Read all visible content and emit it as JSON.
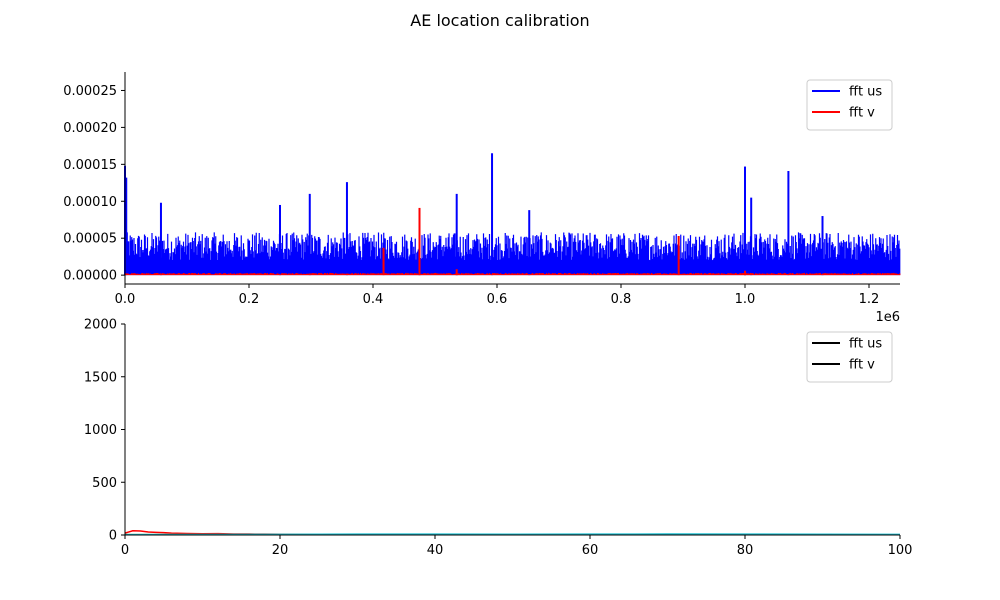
{
  "figure": {
    "title": "AE location calibration"
  },
  "chart_data": [
    {
      "type": "line",
      "title": "",
      "xlabel": "",
      "ylabel": "",
      "xlim": [
        0,
        1250000
      ],
      "ylim": [
        -1.2e-05,
        0.000275
      ],
      "x_offset_label": "1e6",
      "x_ticks": [
        0,
        200000,
        400000,
        600000,
        800000,
        1000000,
        1200000
      ],
      "x_tick_labels": [
        "0.0",
        "0.2",
        "0.4",
        "0.6",
        "0.8",
        "1.0",
        "1.2"
      ],
      "y_ticks": [
        0,
        5e-05,
        0.0001,
        0.00015,
        0.0002,
        0.00025
      ],
      "y_tick_labels": [
        "0.00000",
        "0.00005",
        "0.00010",
        "0.00015",
        "0.00020",
        "0.00025"
      ],
      "legend_position": "top-right",
      "series": [
        {
          "name": "fft us",
          "color": "#0000ff",
          "kind": "noise",
          "baseline_max": 5.8e-05,
          "spikes": [
            {
              "x": 0,
              "y": 0.000148
            },
            {
              "x": 2000,
              "y": 0.000132
            },
            {
              "x": 58000,
              "y": 9.8e-05
            },
            {
              "x": 250000,
              "y": 9.5e-05
            },
            {
              "x": 298000,
              "y": 0.00011
            },
            {
              "x": 358000,
              "y": 0.000126
            },
            {
              "x": 475000,
              "y": 6.2e-05
            },
            {
              "x": 535000,
              "y": 0.00011
            },
            {
              "x": 592000,
              "y": 0.000165
            },
            {
              "x": 652000,
              "y": 8.8e-05
            },
            {
              "x": 1000000,
              "y": 0.000147
            },
            {
              "x": 1010000,
              "y": 0.000105
            },
            {
              "x": 1070000,
              "y": 0.000141
            },
            {
              "x": 1125000,
              "y": 8e-05
            }
          ]
        },
        {
          "name": "fft v",
          "color": "#ff0000",
          "kind": "noise",
          "baseline_max": 3e-06,
          "spikes": [
            {
              "x": 417000,
              "y": 3.7e-05
            },
            {
              "x": 475000,
              "y": 9.1e-05
            },
            {
              "x": 535000,
              "y": 8e-06
            },
            {
              "x": 893000,
              "y": 5.3e-05
            },
            {
              "x": 1000000,
              "y": 6e-06
            }
          ]
        }
      ]
    },
    {
      "type": "line",
      "title": "",
      "xlabel": "",
      "ylabel": "",
      "xlim": [
        0,
        100
      ],
      "ylim": [
        0,
        2000
      ],
      "x_ticks": [
        0,
        20,
        40,
        60,
        80,
        100
      ],
      "x_tick_labels": [
        "0",
        "20",
        "40",
        "60",
        "80",
        "100"
      ],
      "y_ticks": [
        0,
        500,
        1000,
        1500,
        2000
      ],
      "y_tick_labels": [
        "0",
        "500",
        "1000",
        "1500",
        "2000"
      ],
      "legend_position": "top-right",
      "legend": [
        {
          "label": "fft us",
          "color": "#000000"
        },
        {
          "label": "fft v",
          "color": "#000000"
        }
      ],
      "series": [
        {
          "name": "",
          "color": "#ff0000",
          "x": [
            0,
            1,
            2,
            3,
            4,
            5,
            6,
            8,
            10,
            12,
            14,
            16,
            18,
            20,
            23,
            26
          ],
          "y": [
            18,
            40,
            38,
            28,
            25,
            22,
            18,
            14,
            12,
            13,
            10,
            9,
            8,
            7,
            6,
            5
          ]
        },
        {
          "name": "",
          "color": "#2ca02c",
          "x": [
            0,
            2,
            5,
            10,
            15,
            20,
            25,
            30
          ],
          "y": [
            4,
            3,
            4,
            3,
            4,
            3,
            3,
            3
          ]
        },
        {
          "name": "",
          "color": "#17becf",
          "x": [
            0,
            10,
            20,
            30,
            40,
            50,
            60,
            70,
            80,
            90,
            100
          ],
          "y": [
            4,
            5,
            6,
            8,
            8,
            7,
            8,
            9,
            8,
            7,
            6
          ]
        }
      ]
    }
  ]
}
